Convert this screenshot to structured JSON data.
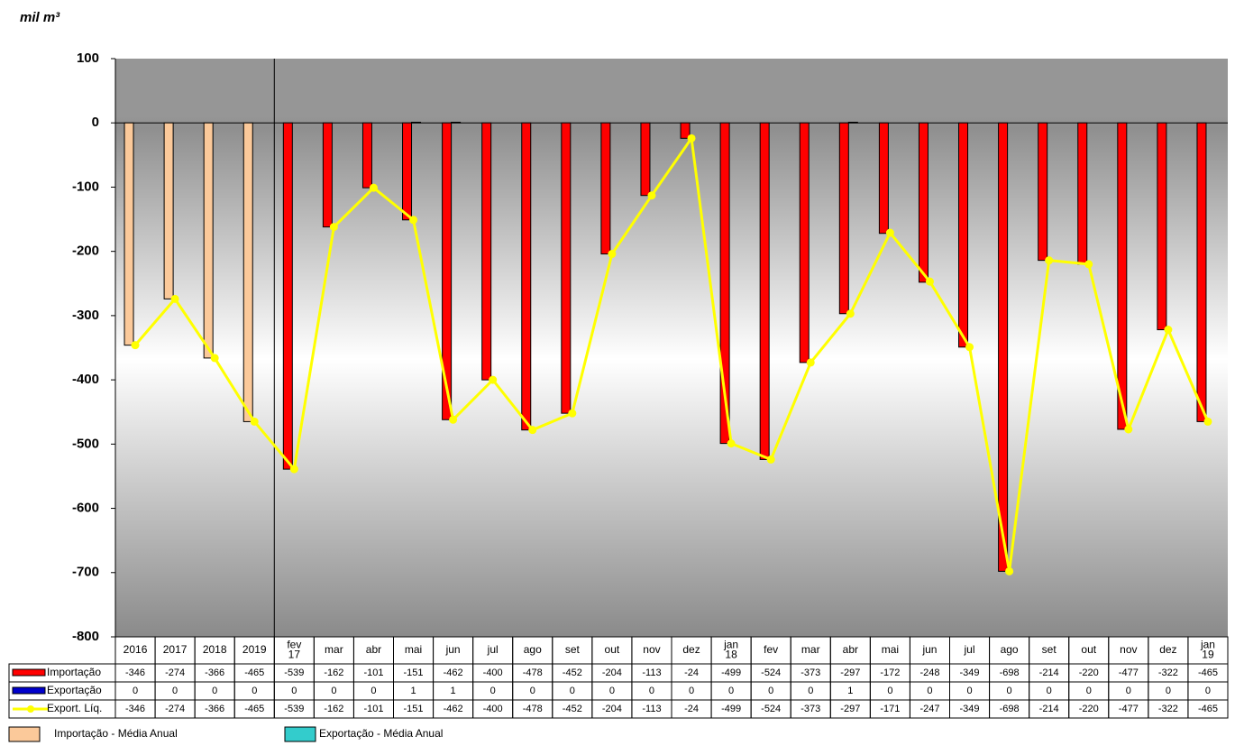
{
  "chart_data": {
    "type": "bar",
    "unit_label": "mil m³",
    "categories": [
      "2016",
      "2017",
      "2018",
      "2019",
      "fev 17",
      "mar",
      "abr",
      "mai",
      "jun",
      "jul",
      "ago",
      "set",
      "out",
      "nov",
      "dez",
      "jan 18",
      "fev",
      "mar",
      "abr",
      "mai",
      "jun",
      "jul",
      "ago",
      "set",
      "out",
      "nov",
      "dez",
      "jan 19"
    ],
    "ylim": [
      -800,
      100
    ],
    "yticks": [
      -800,
      -700,
      -600,
      -500,
      -400,
      -300,
      -200,
      -100,
      0,
      100
    ],
    "series": [
      {
        "name": "Importação",
        "type": "bar",
        "color": "#ff0000",
        "point_colors": [
          "#fbc99a",
          "#fbc99a",
          "#fbc99a",
          "#fbc99a",
          "#ff0000",
          "#ff0000",
          "#ff0000",
          "#ff0000",
          "#ff0000",
          "#ff0000",
          "#ff0000",
          "#ff0000",
          "#ff0000",
          "#ff0000",
          "#ff0000",
          "#ff0000",
          "#ff0000",
          "#ff0000",
          "#ff0000",
          "#ff0000",
          "#ff0000",
          "#ff0000",
          "#ff0000",
          "#ff0000",
          "#ff0000",
          "#ff0000",
          "#ff0000",
          "#ff0000"
        ],
        "values": [
          -346,
          -274,
          -366,
          -465,
          -539,
          -162,
          -101,
          -151,
          -462,
          -400,
          -478,
          -452,
          -204,
          -113,
          -24,
          -499,
          -524,
          -373,
          -297,
          -172,
          -248,
          -349,
          -698,
          -214,
          -220,
          -477,
          -322,
          -465
        ]
      },
      {
        "name": "Exportação",
        "type": "bar",
        "color": "#0000cc",
        "point_colors": [
          "#33cccc",
          "#33cccc",
          "#33cccc",
          "#33cccc",
          "#0000cc",
          "#0000cc",
          "#0000cc",
          "#0000cc",
          "#0000cc",
          "#0000cc",
          "#0000cc",
          "#0000cc",
          "#0000cc",
          "#0000cc",
          "#0000cc",
          "#0000cc",
          "#0000cc",
          "#0000cc",
          "#0000cc",
          "#0000cc",
          "#0000cc",
          "#0000cc",
          "#0000cc",
          "#0000cc",
          "#0000cc",
          "#0000cc",
          "#0000cc",
          "#0000cc"
        ],
        "values": [
          0,
          0,
          0,
          0,
          0,
          0,
          0,
          1,
          1,
          0,
          0,
          0,
          0,
          0,
          0,
          0,
          0,
          0,
          1,
          0,
          0,
          0,
          0,
          0,
          0,
          0,
          0,
          0
        ]
      },
      {
        "name": "Export. Líq.",
        "type": "line",
        "color": "#ffff00",
        "values": [
          -346,
          -274,
          -366,
          -465,
          -539,
          -162,
          -101,
          -151,
          -462,
          -400,
          -478,
          -452,
          -204,
          -113,
          -24,
          -499,
          -524,
          -373,
          -297,
          -171,
          -247,
          -349,
          -698,
          -214,
          -220,
          -477,
          -322,
          -465
        ]
      }
    ],
    "annual_legend": [
      {
        "name": "Importação - Média Anual",
        "color": "#fbc99a"
      },
      {
        "name": "Exportação - Média Anual",
        "color": "#33cccc"
      }
    ]
  }
}
